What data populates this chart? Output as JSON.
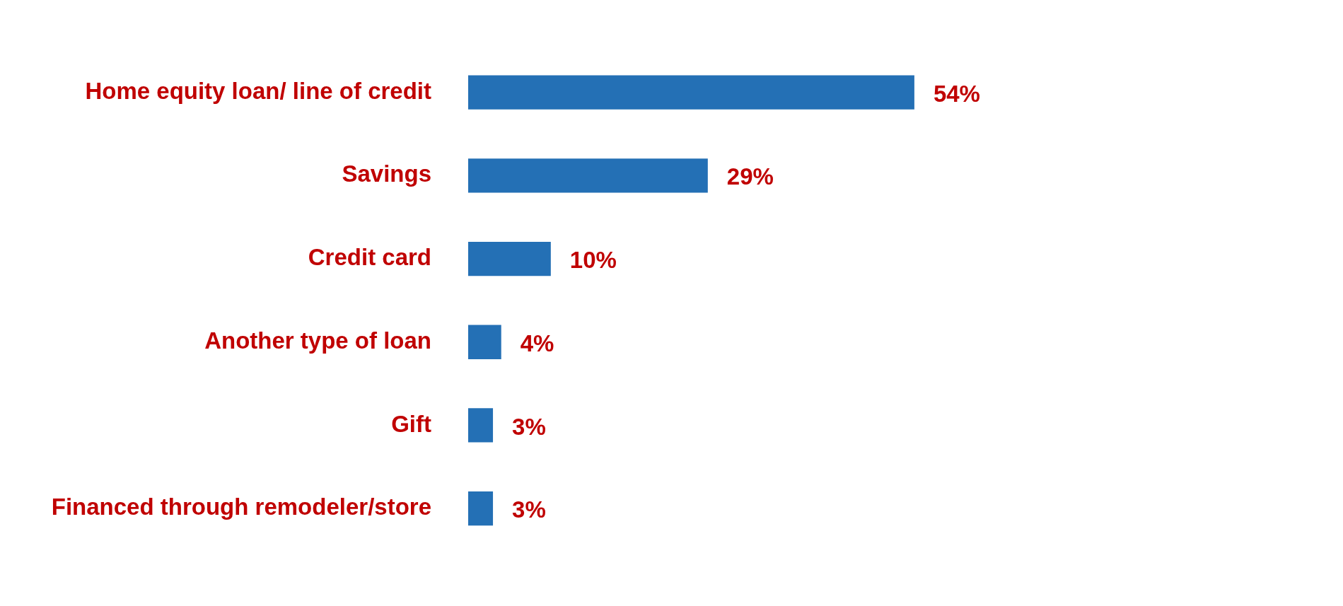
{
  "chart_data": {
    "type": "bar",
    "orientation": "horizontal",
    "categories": [
      "Home equity loan/ line of credit",
      "Savings",
      "Credit card",
      "Another type of loan",
      "Gift",
      "Financed through remodeler/store"
    ],
    "values": [
      54,
      29,
      10,
      4,
      3,
      3
    ],
    "value_labels": [
      "54%",
      "29%",
      "10%",
      "4%",
      "3%",
      "3%"
    ],
    "color": "#2470b5",
    "tick_labels": "y",
    "grid": false,
    "legend": false
  }
}
